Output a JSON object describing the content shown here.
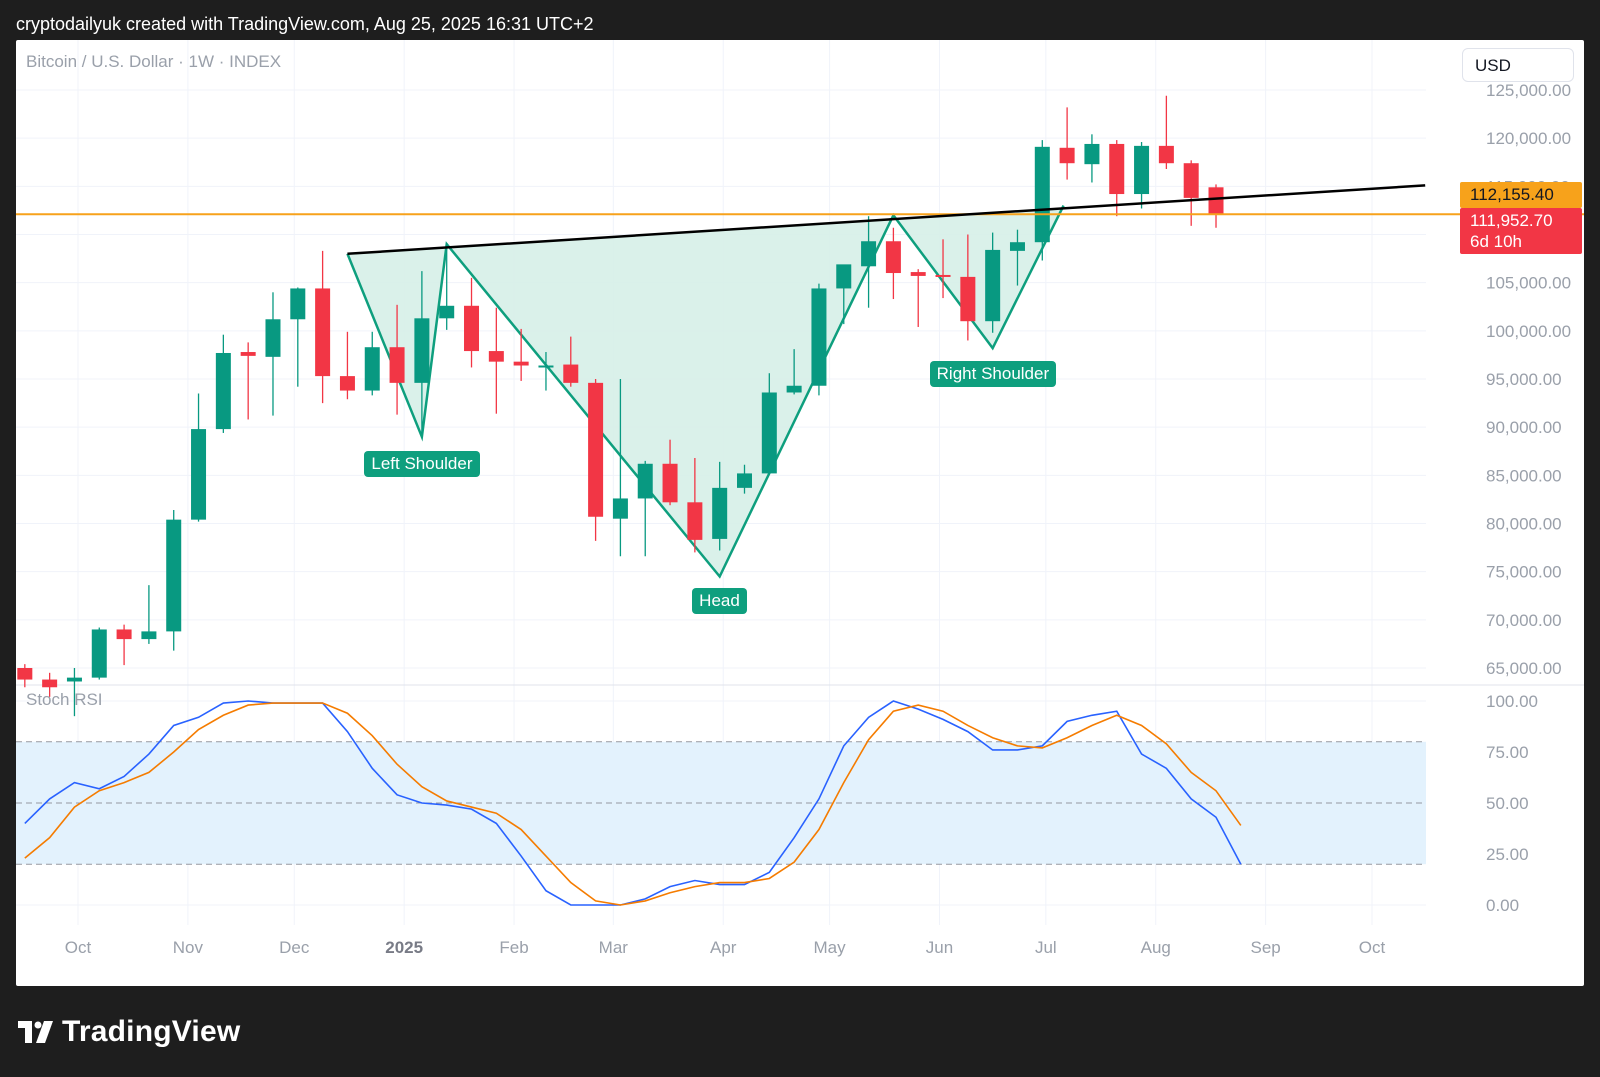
{
  "header": {
    "attribution": "cryptodailyuk created with TradingView.com, Aug 25, 2025 16:31 UTC+2"
  },
  "footer": {
    "logo_text": "TradingView",
    "logo_icon": "tradingview-logo-icon"
  },
  "toolbar": {
    "currency": "USD"
  },
  "colors": {
    "up": "#089981",
    "down": "#f23645",
    "pattern_line": "#0e9f7e",
    "pattern_fill": "#d6efe8",
    "orange": "#f7a21b",
    "neckline": "#000000",
    "k_line": "#2962ff",
    "d_line": "#f57c00",
    "rsi_band": "#e3f2fd"
  },
  "price_tags": {
    "orange_value": "112,155.40",
    "red_value": "111,952.70",
    "red_countdown": "6d 10h"
  },
  "chart_data": [
    {
      "type": "candlestick",
      "title": "Bitcoin / U.S. Dollar · 1W · INDEX",
      "xlabel": "",
      "ylabel": "",
      "timeframe": "1W",
      "y_ticks": [
        "65,000.00",
        "70,000.00",
        "75,000.00",
        "80,000.00",
        "85,000.00",
        "90,000.00",
        "95,000.00",
        "100,000.00",
        "105,000.00",
        "110,000.00",
        "115,000.00",
        "120,000.00",
        "125,000.00"
      ],
      "y_tick_values": [
        65000,
        70000,
        75000,
        80000,
        85000,
        90000,
        95000,
        100000,
        105000,
        110000,
        115000,
        120000,
        125000
      ],
      "ylim": [
        64000,
        126000
      ],
      "x_ticks": [
        {
          "label": "Oct",
          "date": "2024-10-01"
        },
        {
          "label": "Nov",
          "date": "2024-11-01"
        },
        {
          "label": "Dec",
          "date": "2024-12-01"
        },
        {
          "label": "2025",
          "date": "2025-01-01",
          "bold": true
        },
        {
          "label": "Feb",
          "date": "2025-02-01"
        },
        {
          "label": "Mar",
          "date": "2025-03-01"
        },
        {
          "label": "Apr",
          "date": "2025-04-01"
        },
        {
          "label": "May",
          "date": "2025-05-01"
        },
        {
          "label": "Jun",
          "date": "2025-06-01"
        },
        {
          "label": "Jul",
          "date": "2025-07-01"
        },
        {
          "label": "Aug",
          "date": "2025-08-01"
        },
        {
          "label": "Sep",
          "date": "2025-09-01"
        },
        {
          "label": "Oct",
          "date": "2025-10-01"
        }
      ],
      "x_range": [
        "2024-09-16",
        "2025-10-16"
      ],
      "candles": [
        {
          "date": "2024-09-09",
          "o": 63300,
          "h": 66000,
          "l": 63000,
          "c": 65000
        },
        {
          "date": "2024-09-16",
          "o": 65000,
          "h": 65400,
          "l": 63000,
          "c": 63800
        },
        {
          "date": "2024-09-23",
          "o": 63800,
          "h": 64500,
          "l": 62000,
          "c": 63000
        },
        {
          "date": "2024-09-30",
          "o": 63600,
          "h": 65000,
          "l": 60000,
          "c": 64000
        },
        {
          "date": "2024-10-07",
          "o": 64000,
          "h": 69200,
          "l": 63800,
          "c": 69000
        },
        {
          "date": "2024-10-14",
          "o": 69000,
          "h": 69500,
          "l": 65300,
          "c": 68000
        },
        {
          "date": "2024-10-21",
          "o": 68000,
          "h": 73600,
          "l": 67500,
          "c": 68800
        },
        {
          "date": "2024-10-28",
          "o": 68800,
          "h": 81400,
          "l": 66800,
          "c": 80400
        },
        {
          "date": "2024-11-04",
          "o": 80400,
          "h": 93500,
          "l": 80200,
          "c": 89800
        },
        {
          "date": "2024-11-11",
          "o": 89800,
          "h": 99600,
          "l": 89400,
          "c": 97700
        },
        {
          "date": "2024-11-18",
          "o": 97800,
          "h": 98800,
          "l": 90800,
          "c": 97400
        },
        {
          "date": "2024-11-25",
          "o": 97300,
          "h": 104000,
          "l": 91200,
          "c": 101200
        },
        {
          "date": "2024-12-02",
          "o": 101200,
          "h": 104500,
          "l": 94200,
          "c": 104400
        },
        {
          "date": "2024-12-09",
          "o": 104400,
          "h": 108300,
          "l": 92500,
          "c": 95300
        },
        {
          "date": "2024-12-16",
          "o": 95300,
          "h": 99900,
          "l": 92900,
          "c": 93800
        },
        {
          "date": "2024-12-23",
          "o": 93800,
          "h": 99900,
          "l": 93300,
          "c": 98300
        },
        {
          "date": "2024-12-30",
          "o": 98300,
          "h": 102700,
          "l": 91300,
          "c": 94600
        },
        {
          "date": "2025-01-06",
          "o": 94600,
          "h": 106200,
          "l": 89300,
          "c": 101300
        },
        {
          "date": "2025-01-13",
          "o": 101300,
          "h": 109100,
          "l": 100100,
          "c": 102600
        },
        {
          "date": "2025-01-20",
          "o": 102600,
          "h": 105500,
          "l": 96200,
          "c": 97900
        },
        {
          "date": "2025-01-27",
          "o": 97900,
          "h": 102400,
          "l": 91400,
          "c": 96800
        },
        {
          "date": "2025-02-03",
          "o": 96800,
          "h": 100200,
          "l": 94800,
          "c": 96400
        },
        {
          "date": "2025-02-10",
          "o": 96400,
          "h": 97800,
          "l": 93800,
          "c": 96400
        },
        {
          "date": "2025-02-17",
          "o": 96500,
          "h": 99400,
          "l": 94200,
          "c": 94600
        },
        {
          "date": "2025-02-24",
          "o": 94600,
          "h": 95000,
          "l": 78200,
          "c": 80700
        },
        {
          "date": "2025-03-03",
          "o": 80500,
          "h": 95000,
          "l": 76600,
          "c": 82600
        },
        {
          "date": "2025-03-10",
          "o": 82600,
          "h": 86500,
          "l": 76600,
          "c": 86200
        },
        {
          "date": "2025-03-17",
          "o": 86200,
          "h": 88700,
          "l": 81900,
          "c": 82200
        },
        {
          "date": "2025-03-24",
          "o": 82200,
          "h": 86800,
          "l": 77000,
          "c": 78300
        },
        {
          "date": "2025-03-31",
          "o": 78400,
          "h": 86400,
          "l": 77200,
          "c": 83700
        },
        {
          "date": "2025-04-07",
          "o": 83700,
          "h": 86100,
          "l": 83100,
          "c": 85200
        },
        {
          "date": "2025-04-14",
          "o": 85200,
          "h": 95600,
          "l": 85100,
          "c": 93600
        },
        {
          "date": "2025-04-21",
          "o": 93600,
          "h": 98100,
          "l": 93400,
          "c": 94300
        },
        {
          "date": "2025-04-28",
          "o": 94300,
          "h": 104900,
          "l": 93300,
          "c": 104400
        },
        {
          "date": "2025-05-05",
          "o": 104400,
          "h": 106300,
          "l": 100700,
          "c": 106900
        },
        {
          "date": "2025-05-12",
          "o": 106700,
          "h": 111900,
          "l": 102400,
          "c": 109300
        },
        {
          "date": "2025-05-19",
          "o": 109300,
          "h": 110700,
          "l": 103300,
          "c": 106000
        },
        {
          "date": "2025-05-26",
          "o": 106100,
          "h": 106400,
          "l": 100400,
          "c": 105700
        },
        {
          "date": "2025-06-02",
          "o": 105800,
          "h": 109500,
          "l": 103400,
          "c": 105600
        },
        {
          "date": "2025-06-09",
          "o": 105600,
          "h": 110000,
          "l": 99000,
          "c": 101000
        },
        {
          "date": "2025-06-16",
          "o": 101000,
          "h": 110200,
          "l": 99800,
          "c": 108400
        },
        {
          "date": "2025-06-23",
          "o": 108300,
          "h": 110500,
          "l": 104700,
          "c": 109200
        },
        {
          "date": "2025-06-30",
          "o": 109200,
          "h": 119800,
          "l": 107300,
          "c": 119100
        },
        {
          "date": "2025-07-07",
          "o": 119000,
          "h": 123200,
          "l": 115700,
          "c": 117400
        },
        {
          "date": "2025-07-14",
          "o": 117300,
          "h": 120400,
          "l": 115400,
          "c": 119400
        },
        {
          "date": "2025-07-21",
          "o": 119400,
          "h": 119800,
          "l": 111900,
          "c": 114200
        },
        {
          "date": "2025-07-28",
          "o": 114200,
          "h": 119600,
          "l": 112700,
          "c": 119200
        },
        {
          "date": "2025-08-04",
          "o": 119200,
          "h": 124400,
          "l": 116800,
          "c": 117400
        },
        {
          "date": "2025-08-11",
          "o": 117400,
          "h": 117700,
          "l": 110900,
          "c": 113800
        },
        {
          "date": "2025-08-18",
          "o": 114900,
          "h": 115200,
          "l": 110700,
          "c": 112100
        }
      ],
      "horizontal_line": {
        "value": 112100,
        "color": "#f7a21b"
      },
      "neckline": [
        {
          "date": "2024-12-16",
          "price": 108000
        },
        {
          "date": "2025-10-16",
          "price": 115100
        }
      ],
      "pattern_points": [
        {
          "date": "2024-12-16",
          "price": 108000
        },
        {
          "date": "2025-01-06",
          "price": 89000
        },
        {
          "date": "2025-01-13",
          "price": 109000
        },
        {
          "date": "2025-03-31",
          "price": 74500
        },
        {
          "date": "2025-05-19",
          "price": 112000
        },
        {
          "date": "2025-06-16",
          "price": 98200
        },
        {
          "date": "2025-07-06",
          "price": 113000
        }
      ],
      "annotations": [
        {
          "label": "Left Shoulder",
          "date": "2025-01-06",
          "price": 86200
        },
        {
          "label": "Head",
          "date": "2025-03-31",
          "price": 72000
        },
        {
          "label": "Right Shoulder",
          "date": "2025-06-16",
          "price": 95500
        }
      ]
    },
    {
      "type": "line",
      "title": "Stoch RSI",
      "xlabel": "",
      "ylabel": "",
      "y_ticks": [
        "0.00",
        "25.00",
        "50.00",
        "75.00",
        "100.00"
      ],
      "y_tick_values": [
        0,
        25,
        50,
        75,
        100
      ],
      "ylim": [
        0,
        100
      ],
      "band": [
        20,
        80
      ],
      "mid": 50,
      "series": [
        {
          "color": "#2962ff",
          "points": [
            [
              "2024-09-16",
              40
            ],
            [
              "2024-09-23",
              52
            ],
            [
              "2024-09-30",
              60
            ],
            [
              "2024-10-07",
              57
            ],
            [
              "2024-10-14",
              63
            ],
            [
              "2024-10-21",
              74
            ],
            [
              "2024-10-28",
              88
            ],
            [
              "2024-11-04",
              92
            ],
            [
              "2024-11-11",
              99
            ],
            [
              "2024-11-18",
              100
            ],
            [
              "2024-11-25",
              99
            ],
            [
              "2024-12-02",
              99
            ],
            [
              "2024-12-09",
              99
            ],
            [
              "2024-12-16",
              85
            ],
            [
              "2024-12-23",
              67
            ],
            [
              "2024-12-30",
              54
            ],
            [
              "2025-01-06",
              50
            ],
            [
              "2025-01-13",
              49
            ],
            [
              "2025-01-20",
              47
            ],
            [
              "2025-01-27",
              40
            ],
            [
              "2025-02-03",
              24
            ],
            [
              "2025-02-10",
              7
            ],
            [
              "2025-02-17",
              0
            ],
            [
              "2025-02-24",
              0
            ],
            [
              "2025-03-03",
              0
            ],
            [
              "2025-03-10",
              3
            ],
            [
              "2025-03-17",
              9
            ],
            [
              "2025-03-24",
              12
            ],
            [
              "2025-03-31",
              10
            ],
            [
              "2025-04-07",
              10
            ],
            [
              "2025-04-14",
              16
            ],
            [
              "2025-04-21",
              33
            ],
            [
              "2025-04-28",
              52
            ],
            [
              "2025-05-05",
              78
            ],
            [
              "2025-05-12",
              92
            ],
            [
              "2025-05-19",
              100
            ],
            [
              "2025-05-26",
              96
            ],
            [
              "2025-06-02",
              91
            ],
            [
              "2025-06-09",
              85
            ],
            [
              "2025-06-16",
              76
            ],
            [
              "2025-06-23",
              76
            ],
            [
              "2025-06-30",
              78
            ],
            [
              "2025-07-07",
              90
            ],
            [
              "2025-07-14",
              93
            ],
            [
              "2025-07-21",
              95
            ],
            [
              "2025-07-28",
              74
            ],
            [
              "2025-08-04",
              67
            ],
            [
              "2025-08-11",
              52
            ],
            [
              "2025-08-18",
              43
            ],
            [
              "2025-08-25",
              20
            ]
          ]
        },
        {
          "color": "#f57c00",
          "points": [
            [
              "2024-09-16",
              23
            ],
            [
              "2024-09-23",
              33
            ],
            [
              "2024-09-30",
              48
            ],
            [
              "2024-10-07",
              56
            ],
            [
              "2024-10-14",
              60
            ],
            [
              "2024-10-21",
              65
            ],
            [
              "2024-10-28",
              75
            ],
            [
              "2024-11-04",
              86
            ],
            [
              "2024-11-11",
              93
            ],
            [
              "2024-11-18",
              98
            ],
            [
              "2024-11-25",
              99
            ],
            [
              "2024-12-02",
              99
            ],
            [
              "2024-12-09",
              99
            ],
            [
              "2024-12-16",
              94
            ],
            [
              "2024-12-23",
              83
            ],
            [
              "2024-12-30",
              69
            ],
            [
              "2025-01-06",
              58
            ],
            [
              "2025-01-13",
              51
            ],
            [
              "2025-01-20",
              48
            ],
            [
              "2025-01-27",
              45
            ],
            [
              "2025-02-03",
              37
            ],
            [
              "2025-02-10",
              24
            ],
            [
              "2025-02-17",
              11
            ],
            [
              "2025-02-24",
              2
            ],
            [
              "2025-03-03",
              0
            ],
            [
              "2025-03-10",
              2
            ],
            [
              "2025-03-17",
              6
            ],
            [
              "2025-03-24",
              9
            ],
            [
              "2025-03-31",
              11
            ],
            [
              "2025-04-07",
              11
            ],
            [
              "2025-04-14",
              13
            ],
            [
              "2025-04-21",
              21
            ],
            [
              "2025-04-28",
              37
            ],
            [
              "2025-05-05",
              60
            ],
            [
              "2025-05-12",
              81
            ],
            [
              "2025-05-19",
              95
            ],
            [
              "2025-05-26",
              98
            ],
            [
              "2025-06-02",
              95
            ],
            [
              "2025-06-09",
              88
            ],
            [
              "2025-06-16",
              82
            ],
            [
              "2025-06-23",
              78
            ],
            [
              "2025-06-30",
              77
            ],
            [
              "2025-07-07",
              82
            ],
            [
              "2025-07-14",
              88
            ],
            [
              "2025-07-21",
              93
            ],
            [
              "2025-07-28",
              88
            ],
            [
              "2025-08-04",
              79
            ],
            [
              "2025-08-11",
              65
            ],
            [
              "2025-08-18",
              56
            ],
            [
              "2025-08-25",
              39
            ]
          ]
        }
      ]
    }
  ]
}
